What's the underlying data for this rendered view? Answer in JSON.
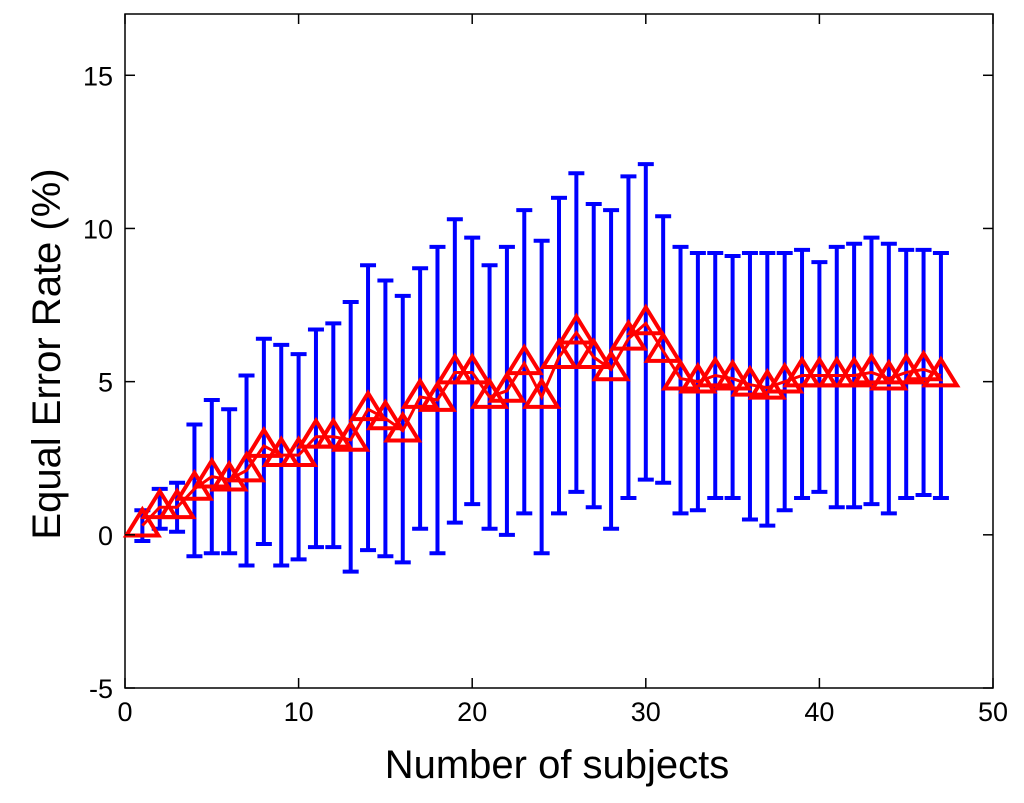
{
  "chart_data": {
    "type": "line",
    "title": "",
    "xlabel": "Number of subjects",
    "ylabel": "Equal Error Rate (%)",
    "xlim": [
      0,
      50
    ],
    "ylim": [
      -5,
      17
    ],
    "x_ticks": [
      0,
      10,
      20,
      30,
      40,
      50
    ],
    "y_ticks": [
      -5,
      0,
      5,
      10,
      15
    ],
    "grid": false,
    "legend": "none",
    "series": [
      {
        "marker": "triangle",
        "color": "#ff0000",
        "errorbar_color": "#0000ff",
        "points": [
          {
            "x": 1,
            "y": 0.3,
            "lower": -0.2,
            "upper": 0.8
          },
          {
            "x": 2,
            "y": 0.9,
            "lower": 0.2,
            "upper": 1.5
          },
          {
            "x": 3,
            "y": 0.9,
            "lower": 0.1,
            "upper": 1.7
          },
          {
            "x": 4,
            "y": 1.5,
            "lower": -0.7,
            "upper": 3.6
          },
          {
            "x": 5,
            "y": 1.9,
            "lower": -0.6,
            "upper": 4.4
          },
          {
            "x": 6,
            "y": 1.8,
            "lower": -0.6,
            "upper": 4.1
          },
          {
            "x": 7,
            "y": 2.1,
            "lower": -1.0,
            "upper": 5.2
          },
          {
            "x": 8,
            "y": 2.9,
            "lower": -0.3,
            "upper": 6.4
          },
          {
            "x": 9,
            "y": 2.6,
            "lower": -1.0,
            "upper": 6.2
          },
          {
            "x": 10,
            "y": 2.6,
            "lower": -0.8,
            "upper": 5.9
          },
          {
            "x": 11,
            "y": 3.2,
            "lower": -0.4,
            "upper": 6.7
          },
          {
            "x": 12,
            "y": 3.2,
            "lower": -0.4,
            "upper": 6.9
          },
          {
            "x": 13,
            "y": 3.1,
            "lower": -1.2,
            "upper": 7.6
          },
          {
            "x": 14,
            "y": 4.1,
            "lower": -0.5,
            "upper": 8.8
          },
          {
            "x": 15,
            "y": 3.8,
            "lower": -0.7,
            "upper": 8.3
          },
          {
            "x": 16,
            "y": 3.4,
            "lower": -0.9,
            "upper": 7.8
          },
          {
            "x": 17,
            "y": 4.5,
            "lower": 0.2,
            "upper": 8.7
          },
          {
            "x": 18,
            "y": 4.4,
            "lower": -0.6,
            "upper": 9.4
          },
          {
            "x": 19,
            "y": 5.3,
            "lower": 0.4,
            "upper": 10.3
          },
          {
            "x": 20,
            "y": 5.3,
            "lower": 1.0,
            "upper": 9.7
          },
          {
            "x": 21,
            "y": 4.5,
            "lower": 0.2,
            "upper": 8.8
          },
          {
            "x": 22,
            "y": 4.7,
            "lower": 0.0,
            "upper": 9.4
          },
          {
            "x": 23,
            "y": 5.6,
            "lower": 0.7,
            "upper": 10.6
          },
          {
            "x": 24,
            "y": 4.5,
            "lower": -0.6,
            "upper": 9.6
          },
          {
            "x": 25,
            "y": 5.8,
            "lower": 0.7,
            "upper": 11.0
          },
          {
            "x": 26,
            "y": 6.6,
            "lower": 1.4,
            "upper": 11.8
          },
          {
            "x": 27,
            "y": 5.8,
            "lower": 0.9,
            "upper": 10.8
          },
          {
            "x": 28,
            "y": 5.4,
            "lower": 0.2,
            "upper": 10.6
          },
          {
            "x": 29,
            "y": 6.4,
            "lower": 1.2,
            "upper": 11.7
          },
          {
            "x": 30,
            "y": 6.9,
            "lower": 1.8,
            "upper": 12.1
          },
          {
            "x": 31,
            "y": 6.0,
            "lower": 1.7,
            "upper": 10.4
          },
          {
            "x": 32,
            "y": 5.1,
            "lower": 0.7,
            "upper": 9.4
          },
          {
            "x": 33,
            "y": 5.0,
            "lower": 0.8,
            "upper": 9.2
          },
          {
            "x": 34,
            "y": 5.2,
            "lower": 1.2,
            "upper": 9.2
          },
          {
            "x": 35,
            "y": 5.1,
            "lower": 1.2,
            "upper": 9.1
          },
          {
            "x": 36,
            "y": 4.9,
            "lower": 0.5,
            "upper": 9.2
          },
          {
            "x": 37,
            "y": 4.8,
            "lower": 0.3,
            "upper": 9.2
          },
          {
            "x": 38,
            "y": 5.0,
            "lower": 0.8,
            "upper": 9.2
          },
          {
            "x": 39,
            "y": 5.2,
            "lower": 1.2,
            "upper": 9.3
          },
          {
            "x": 40,
            "y": 5.2,
            "lower": 1.4,
            "upper": 8.9
          },
          {
            "x": 41,
            "y": 5.2,
            "lower": 0.9,
            "upper": 9.4
          },
          {
            "x": 42,
            "y": 5.2,
            "lower": 0.9,
            "upper": 9.5
          },
          {
            "x": 43,
            "y": 5.3,
            "lower": 1.0,
            "upper": 9.7
          },
          {
            "x": 44,
            "y": 5.1,
            "lower": 0.7,
            "upper": 9.5
          },
          {
            "x": 45,
            "y": 5.3,
            "lower": 1.2,
            "upper": 9.3
          },
          {
            "x": 46,
            "y": 5.4,
            "lower": 1.3,
            "upper": 9.3
          },
          {
            "x": 47,
            "y": 5.2,
            "lower": 1.2,
            "upper": 9.2
          }
        ]
      }
    ]
  },
  "colors": {
    "background": "#ffffff",
    "axes": "#000000",
    "marker": "#ff0000",
    "errorbar": "#0000ff"
  }
}
